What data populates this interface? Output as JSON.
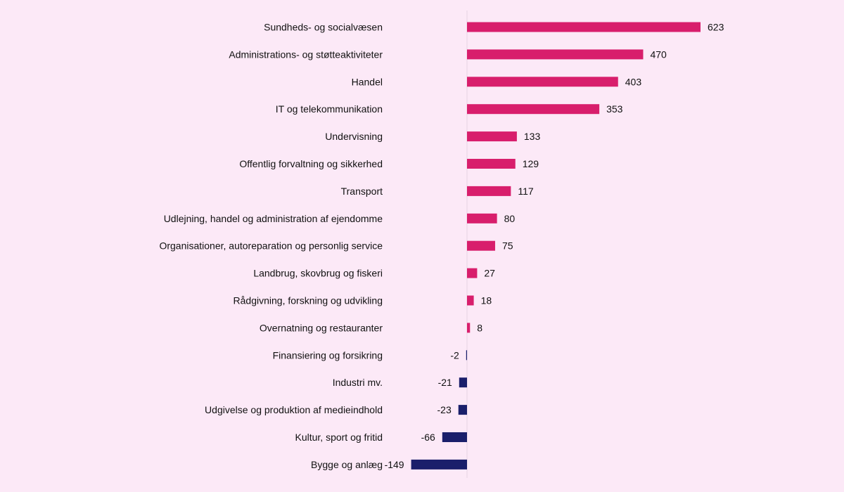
{
  "chart_data": {
    "type": "bar",
    "orientation": "horizontal",
    "categories": [
      "Sundheds- og socialvæsen",
      "Administrations- og støtteaktiviteter",
      "Handel",
      "IT og telekommunikation",
      "Undervisning",
      "Offentlig forvaltning og sikkerhed",
      "Transport",
      "Udlejning, handel og administration af ejendomme",
      "Organisationer, autoreparation og personlig service",
      "Landbrug, skovbrug og fiskeri",
      "Rådgivning, forskning og udvikling",
      "Overnatning og restauranter",
      "Finansiering og forsikring",
      "Industri mv.",
      "Udgivelse og produktion af medieindhold",
      "Kultur, sport og fritid",
      "Bygge og anlæg"
    ],
    "values": [
      623,
      470,
      403,
      353,
      133,
      129,
      117,
      80,
      75,
      27,
      18,
      8,
      -2,
      -21,
      -23,
      -66,
      -149
    ],
    "value_labels": [
      "623",
      "470",
      "403",
      "353",
      "133",
      "129",
      "117",
      "80",
      "75",
      "27",
      "18",
      "8",
      "-2",
      "-21",
      "-23",
      "-66",
      "-149"
    ],
    "xlim": [
      -149,
      623
    ],
    "grid": false,
    "legend": "none",
    "title": "",
    "xlabel": "",
    "ylabel": "",
    "colors": {
      "positive": "#d81e6c",
      "negative": "#1a1f6b",
      "axis": "#e6d3e3",
      "background": "#fce9f7"
    }
  }
}
